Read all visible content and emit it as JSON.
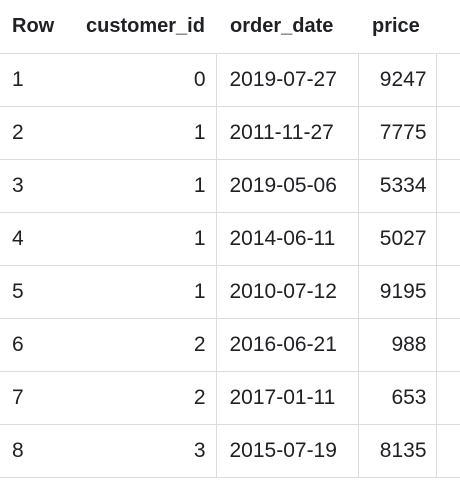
{
  "table": {
    "headers": {
      "row": "Row",
      "customer_id": "customer_id",
      "order_date": "order_date",
      "price": "price"
    },
    "rows": [
      {
        "row": "1",
        "customer_id": "0",
        "order_date": "2019-07-27",
        "price": "9247"
      },
      {
        "row": "2",
        "customer_id": "1",
        "order_date": "2011-11-27",
        "price": "7775"
      },
      {
        "row": "3",
        "customer_id": "1",
        "order_date": "2019-05-06",
        "price": "5334"
      },
      {
        "row": "4",
        "customer_id": "1",
        "order_date": "2014-06-11",
        "price": "5027"
      },
      {
        "row": "5",
        "customer_id": "1",
        "order_date": "2010-07-12",
        "price": "9195"
      },
      {
        "row": "6",
        "customer_id": "2",
        "order_date": "2016-06-21",
        "price": "988"
      },
      {
        "row": "7",
        "customer_id": "2",
        "order_date": "2017-01-11",
        "price": "653"
      },
      {
        "row": "8",
        "customer_id": "3",
        "order_date": "2015-07-19",
        "price": "8135"
      }
    ]
  }
}
